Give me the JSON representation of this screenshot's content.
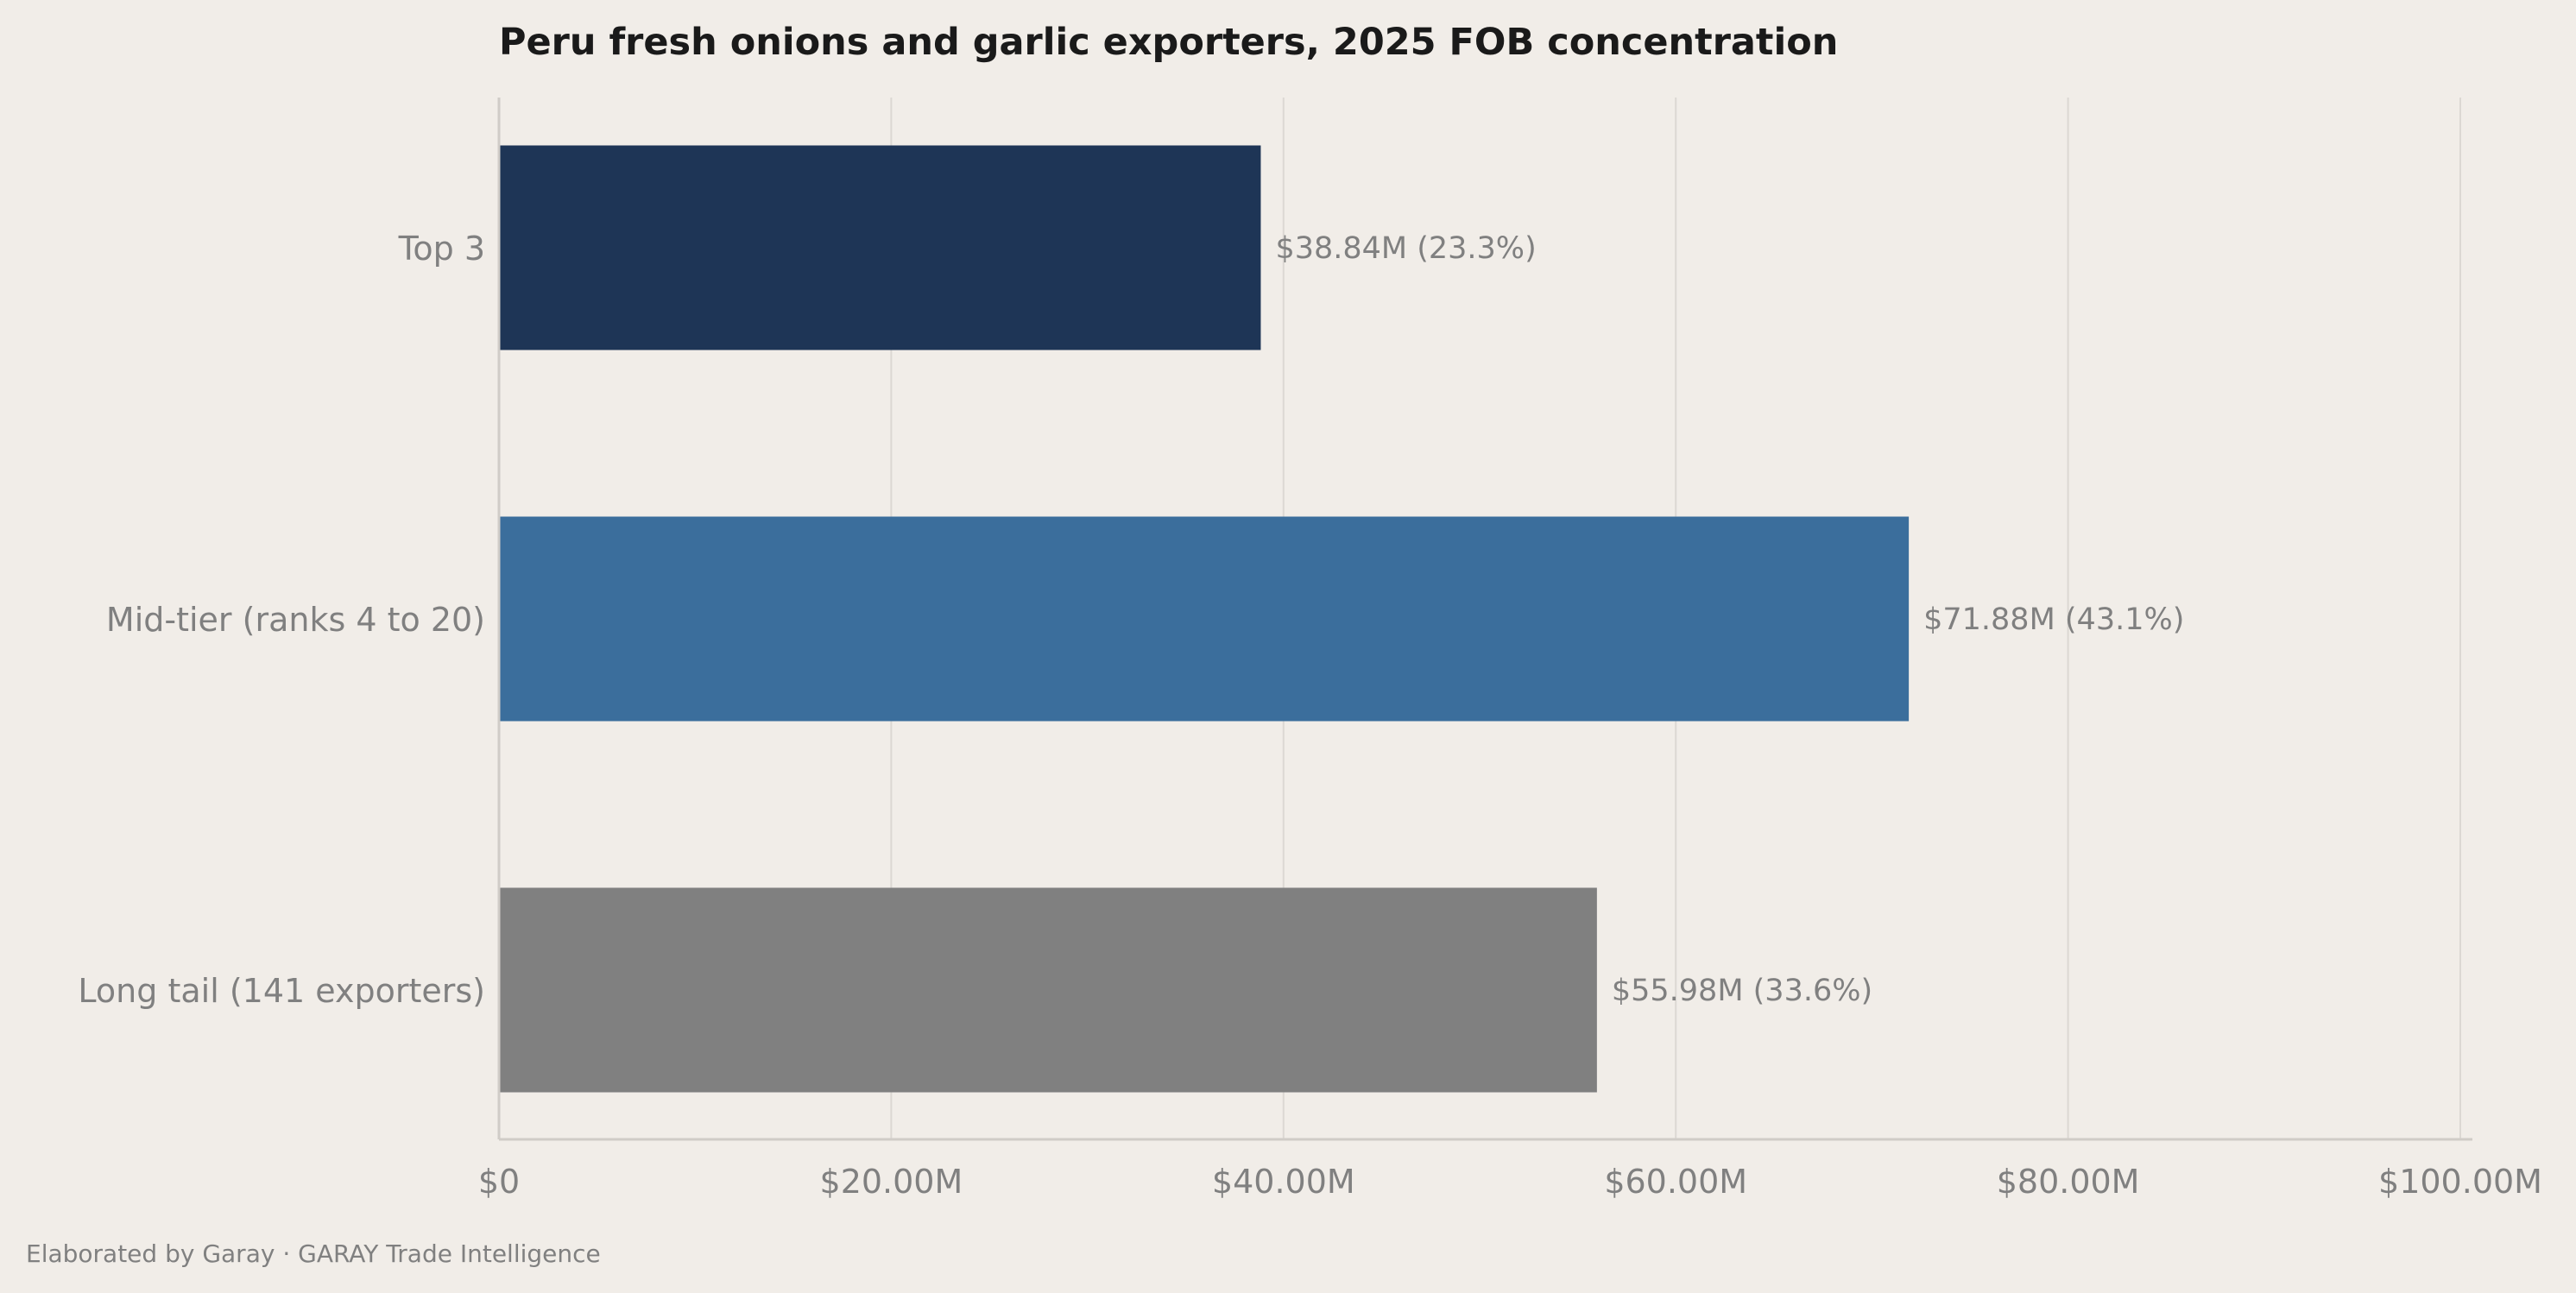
{
  "chart_data": {
    "type": "bar",
    "orientation": "horizontal",
    "title": "Peru fresh onions and garlic exporters, 2025 FOB concentration",
    "categories": [
      "Top 3",
      "Mid-tier (ranks 4 to 20)",
      "Long tail (141 exporters)"
    ],
    "values": [
      38.84,
      71.88,
      55.98
    ],
    "value_unit": "millions USD",
    "bar_labels": [
      "$38.84M  (23.3%)",
      "$71.88M  (43.1%)",
      "$55.98M  (33.6%)"
    ],
    "colors": [
      "#1e3556",
      "#3b6e9c",
      "#808080"
    ],
    "xlim": [
      0,
      100
    ],
    "xticks": [
      0,
      20,
      40,
      60,
      80,
      100
    ],
    "xtick_labels": [
      "$0",
      "$20.00M",
      "$40.00M",
      "$60.00M",
      "$80.00M",
      "$100.00M"
    ],
    "grid": "vertical",
    "xlabel": "",
    "ylabel": ""
  },
  "footer": {
    "note": "Elaborated by Garay  ·  GARAY Trade Intelligence"
  },
  "colors": {
    "background": "#f1ede8",
    "grid": "#dcd8d3",
    "axis": "#d0ccc7",
    "text_muted": "#808080",
    "title": "#1a1a1a"
  }
}
